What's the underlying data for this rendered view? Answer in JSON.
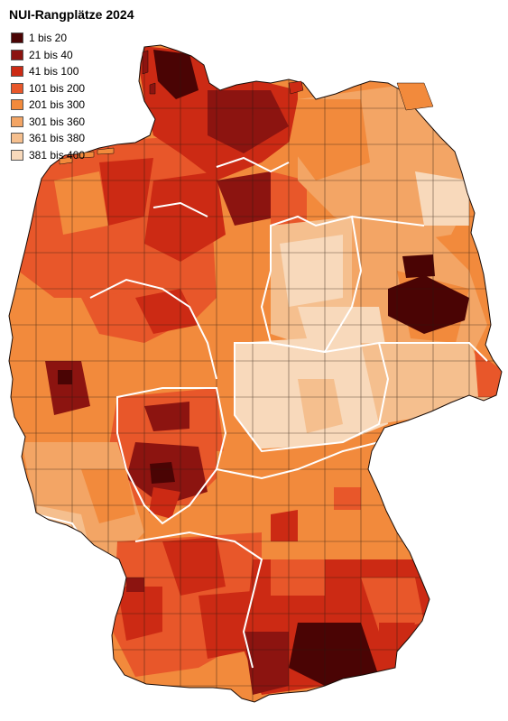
{
  "title": "NUI-Rangplätze 2024",
  "legend": [
    {
      "label": "1 bis 20",
      "color": "#4a0404"
    },
    {
      "label": "21 bis 40",
      "color": "#8c1410"
    },
    {
      "label": "41 bis 100",
      "color": "#cc2a14"
    },
    {
      "label": "101 bis 200",
      "color": "#e8572a"
    },
    {
      "label": "201 bis 300",
      "color": "#f28a3c"
    },
    {
      "label": "301 bis 360",
      "color": "#f3a565"
    },
    {
      "label": "361 bis 380",
      "color": "#f5bf8e"
    },
    {
      "label": "381 bis 400",
      "color": "#f8d9bb"
    }
  ]
}
